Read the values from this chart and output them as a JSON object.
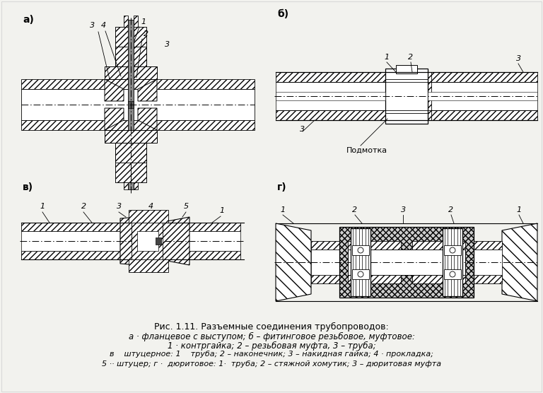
{
  "background_color": "#f2f2ee",
  "title_line1": "Рис. 1.11. Разъемные соединения трубопроводов:",
  "title_line2": "а · фланцевое с выступом; б – фитинговое резьбовое, муфтовое:",
  "title_line3": "1 · контргайка; 2 – резьбовая муфта, 3 – труба;",
  "title_line4": "в    штуцерное: 1    труба; 2 – наконечник; 3 – накидная гайка; 4 · прокладка;",
  "title_line5": "5 ·· штуцер; г ·  дюритовое: 1·  труба; 2 – стяжной хомутик; 3 – дюритовая муфта",
  "label_a": "а)",
  "label_b": "б)",
  "label_v": "в)",
  "label_g": "г)"
}
